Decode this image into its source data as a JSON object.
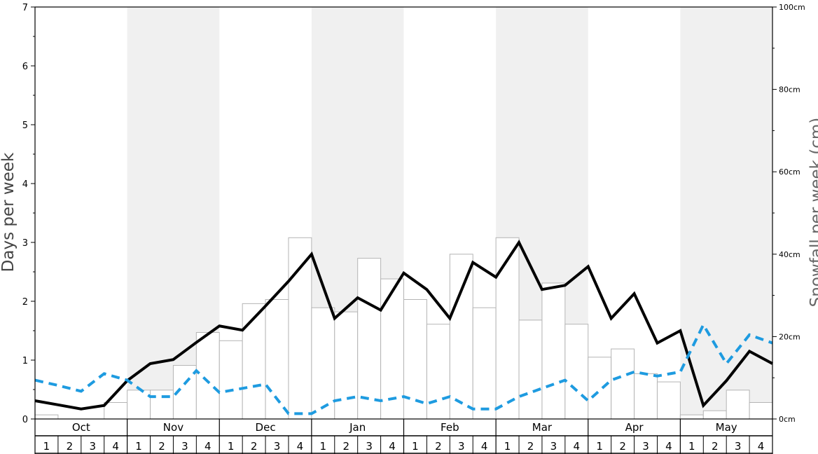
{
  "chart_data": {
    "type": "bar+line",
    "ylabel_left": "Days per week",
    "ylabel_right": "Snowfall per week (cm)",
    "ylim_left": [
      0,
      7
    ],
    "yticks_left": [
      "0",
      "1",
      "2",
      "3",
      "4",
      "5",
      "6",
      "7"
    ],
    "ylim_right": [
      0,
      100
    ],
    "yticks_right": [
      "0cm",
      "20cm",
      "40cm",
      "60cm",
      "80cm",
      "100cm"
    ],
    "months": [
      "Oct",
      "Nov",
      "Dec",
      "Jan",
      "Feb",
      "Mar",
      "Apr",
      "May"
    ],
    "weeks": [
      "1",
      "2",
      "3",
      "4"
    ],
    "shaded_months": [
      "Nov",
      "Jan",
      "Mar",
      "May"
    ],
    "snowfall_bars_cm": [
      1,
      0,
      0,
      4,
      7,
      7,
      13,
      21,
      19,
      28,
      29,
      44,
      27,
      26,
      39,
      34,
      29,
      23,
      40,
      27,
      44,
      24,
      33,
      23,
      15,
      17,
      11,
      9,
      1,
      2,
      7,
      4
    ],
    "series": [
      {
        "style": "solid-black",
        "values": [
          0.31,
          0.24,
          0.17,
          0.23,
          0.65,
          0.94,
          1.01,
          1.3,
          1.58,
          1.51,
          1.92,
          2.34,
          2.8,
          1.71,
          2.06,
          1.85,
          2.48,
          2.2,
          1.71,
          2.66,
          2.41,
          3.0,
          2.2,
          2.27,
          2.59,
          1.71,
          2.13,
          1.29,
          1.5,
          0.23,
          0.65,
          1.15,
          0.94
        ]
      },
      {
        "style": "dashed-blue",
        "values": [
          0.66,
          0.57,
          0.47,
          0.77,
          0.66,
          0.38,
          0.38,
          0.82,
          0.45,
          0.52,
          0.59,
          0.09,
          0.09,
          0.31,
          0.38,
          0.31,
          0.38,
          0.26,
          0.38,
          0.17,
          0.17,
          0.38,
          0.52,
          0.66,
          0.31,
          0.66,
          0.8,
          0.73,
          0.8,
          1.6,
          0.94,
          1.43,
          1.29
        ]
      }
    ]
  }
}
